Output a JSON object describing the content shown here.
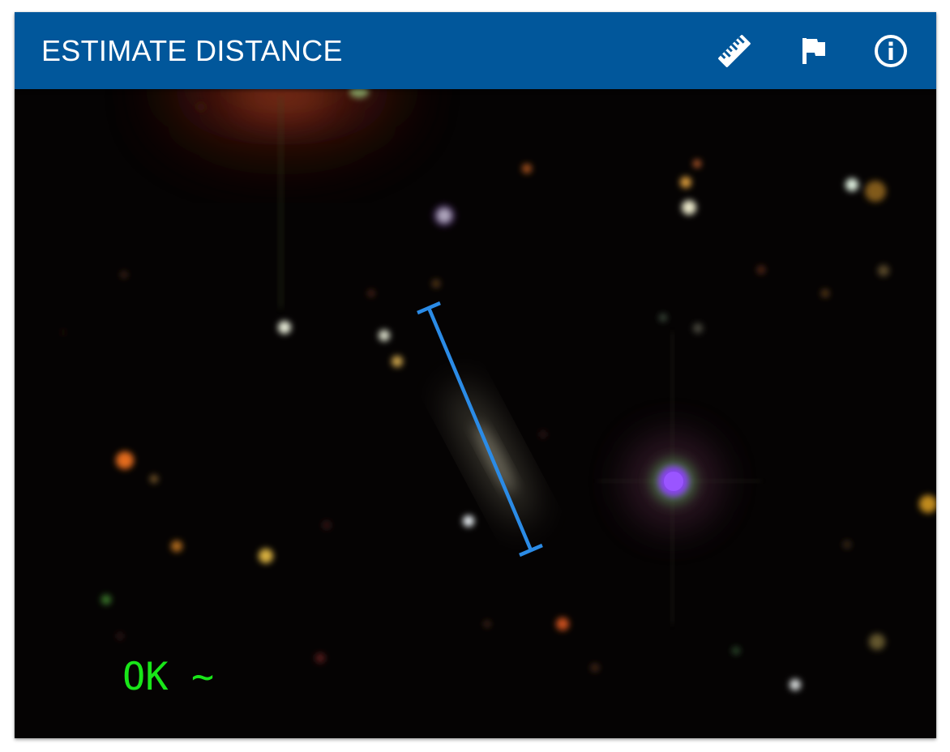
{
  "header": {
    "title": "ESTIMATE DISTANCE",
    "background_color": "#01579b",
    "title_color": "#ffffff"
  },
  "toolbar": {
    "buttons": [
      {
        "id": "measure",
        "icon": "ruler-icon"
      },
      {
        "id": "flag",
        "icon": "flag-icon"
      },
      {
        "id": "info",
        "icon": "info-icon"
      }
    ]
  },
  "image": {
    "subject": "galaxy-cutout",
    "background_color": "#050303"
  },
  "measurement": {
    "tool": "distance-ruler",
    "color": "#2b8be6"
  },
  "status": {
    "text": "OK ~",
    "color": "#19e619"
  }
}
